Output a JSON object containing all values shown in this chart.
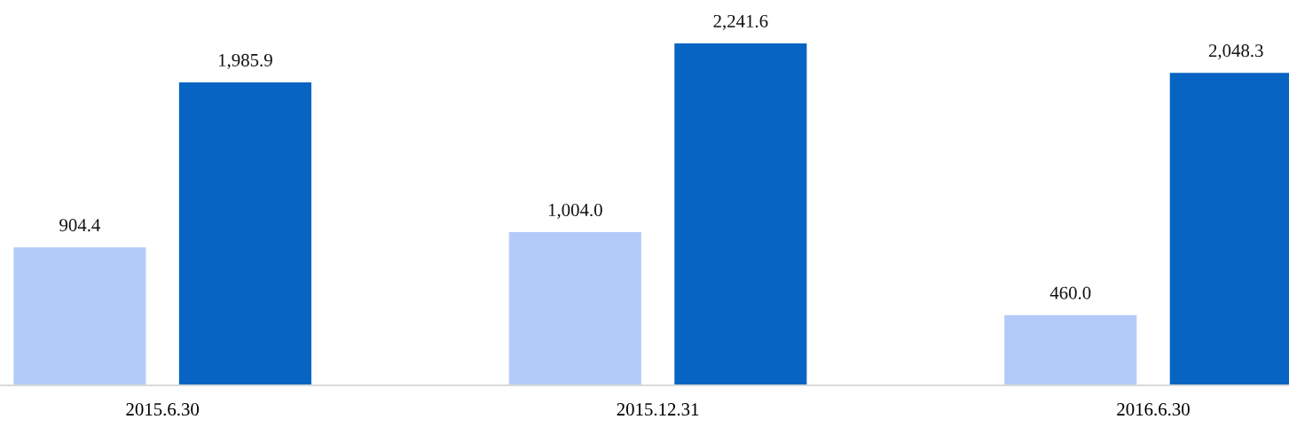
{
  "chart_data": {
    "type": "bar",
    "categories": [
      "2015.6.30",
      "2015.12.31",
      "2016.6.30"
    ],
    "series": [
      {
        "color": "#b3cbf9",
        "values": [
          904.4,
          1004.0,
          460.0
        ],
        "value_labels": [
          "904.4",
          "1,004.0",
          "460.0"
        ]
      },
      {
        "color": "#0764c2",
        "values": [
          1985.9,
          2241.6,
          2048.3
        ],
        "value_labels": [
          "1,985.9",
          "2,241.6",
          "2,048.3"
        ]
      }
    ],
    "grid": false,
    "legend": false
  }
}
